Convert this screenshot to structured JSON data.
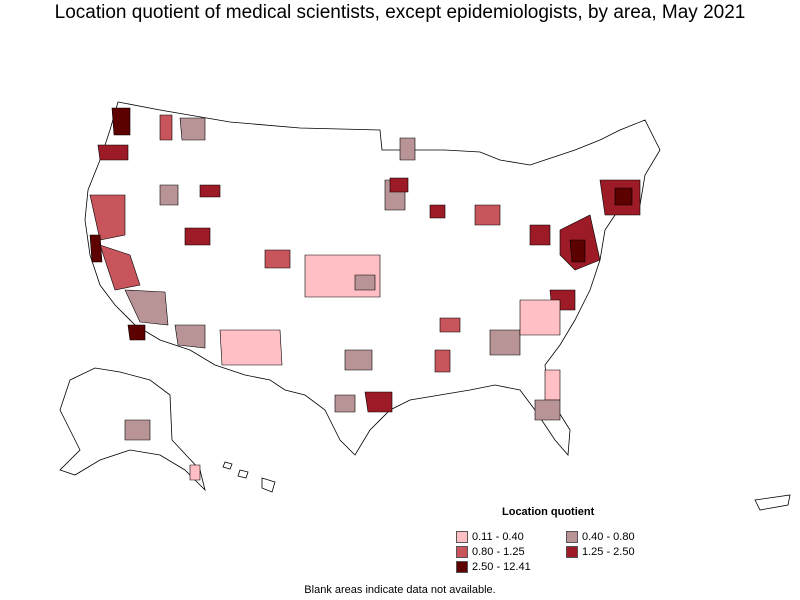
{
  "title": "Location quotient of medical scientists, except epidemiologists, by area, May 2021",
  "legend": {
    "title": "Location quotient",
    "items": [
      {
        "label": "0.11 - 0.40",
        "color": "#ffbfc4"
      },
      {
        "label": "0.40 - 0.80",
        "color": "#b99496"
      },
      {
        "label": "0.80 - 1.25",
        "color": "#c8545c"
      },
      {
        "label": "1.25 - 2.50",
        "color": "#9c1b27"
      },
      {
        "label": "2.50 - 12.41",
        "color": "#5c0000"
      }
    ]
  },
  "footnote": "Blank areas indicate data not available.",
  "colors": {
    "no_data": "#ffffff",
    "border": "#000000"
  }
}
